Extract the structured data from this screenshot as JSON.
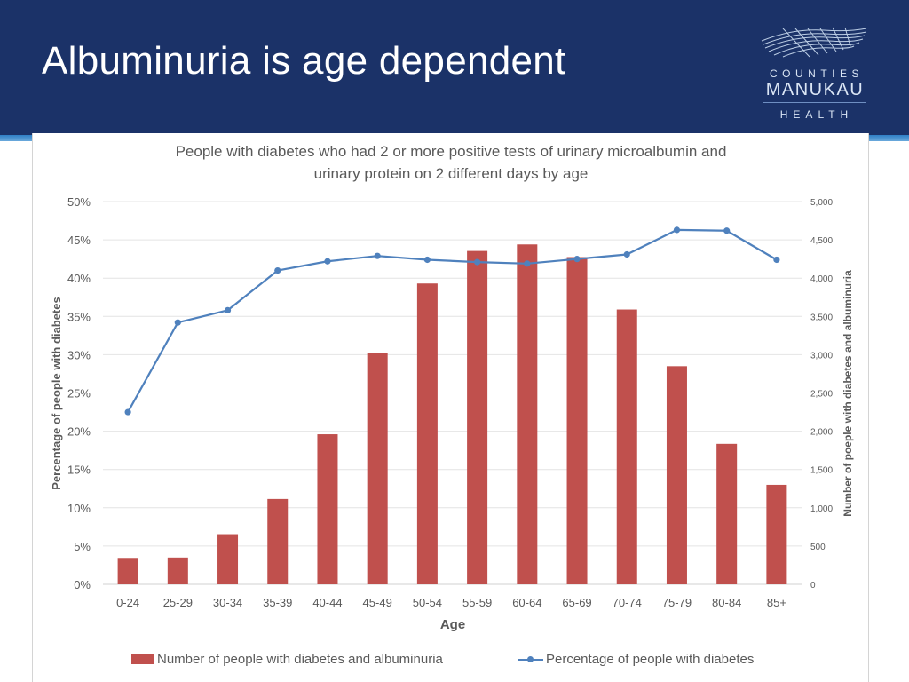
{
  "slide": {
    "title": "Albuminuria is age dependent",
    "logo": {
      "line1": "COUNTIES",
      "line2": "MANUKAU",
      "line3": "HEALTH"
    },
    "colors": {
      "header_bg": "#1b3268",
      "accent_stripe": "#2f7fc6"
    }
  },
  "chart_data": {
    "type": "bar",
    "title_lines": [
      "People with diabetes who had 2 or more positive tests of urinary microalbumin and",
      "urinary protein on 2 different days by age"
    ],
    "xlabel": "Age",
    "ylabel": "Percentage of people with diabetes",
    "y2label": "Number of poeple with diabetes and albuminuria",
    "categories": [
      "0-24",
      "25-29",
      "30-34",
      "35-39",
      "40-44",
      "45-49",
      "50-54",
      "55-59",
      "60-64",
      "65-69",
      "70-74",
      "75-79",
      "80-84",
      "85+"
    ],
    "ylim": [
      0,
      50
    ],
    "y_ticks": [
      "0%",
      "5%",
      "10%",
      "15%",
      "20%",
      "25%",
      "30%",
      "35%",
      "40%",
      "45%",
      "50%"
    ],
    "y2lim": [
      0,
      5000
    ],
    "y2_ticks": [
      "0",
      "500",
      "1,000",
      "1,500",
      "2,000",
      "2,500",
      "3,000",
      "3,500",
      "4,000",
      "4,500",
      "5,000"
    ],
    "grid": true,
    "legend_position": "bottom",
    "series": [
      {
        "name": "Number of people with diabetes and albuminuria",
        "type": "bar",
        "axis": "right",
        "color": "#c0504d",
        "values": [
          345,
          350,
          655,
          1115,
          1960,
          3020,
          3930,
          4355,
          4440,
          4275,
          3590,
          2850,
          1835,
          1300
        ]
      },
      {
        "name": "Percentage of people with diabetes",
        "type": "line",
        "axis": "left",
        "color": "#4f81bd",
        "values": [
          22.5,
          34.2,
          35.8,
          41.0,
          42.2,
          42.9,
          42.4,
          42.1,
          41.9,
          42.5,
          43.1,
          46.3,
          46.2,
          42.4
        ]
      }
    ]
  }
}
